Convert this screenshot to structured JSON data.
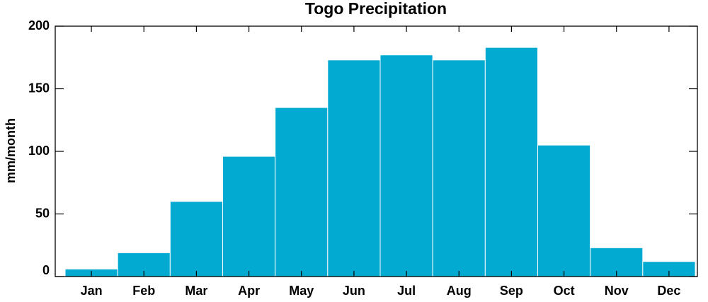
{
  "chart_data": {
    "type": "bar",
    "title": "Togo Precipitation",
    "y_label": "mm/month",
    "categories": [
      "Jan",
      "Feb",
      "Mar",
      "Apr",
      "May",
      "Jun",
      "Jul",
      "Aug",
      "Sep",
      "Oct",
      "Nov",
      "Dec"
    ],
    "values": [
      6,
      19,
      60,
      96,
      135,
      173,
      177,
      173,
      183,
      105,
      23,
      12
    ],
    "color": "#02a9d1",
    "ylim": [
      0,
      200
    ],
    "yticks": [
      0,
      50,
      100,
      150,
      200
    ]
  }
}
